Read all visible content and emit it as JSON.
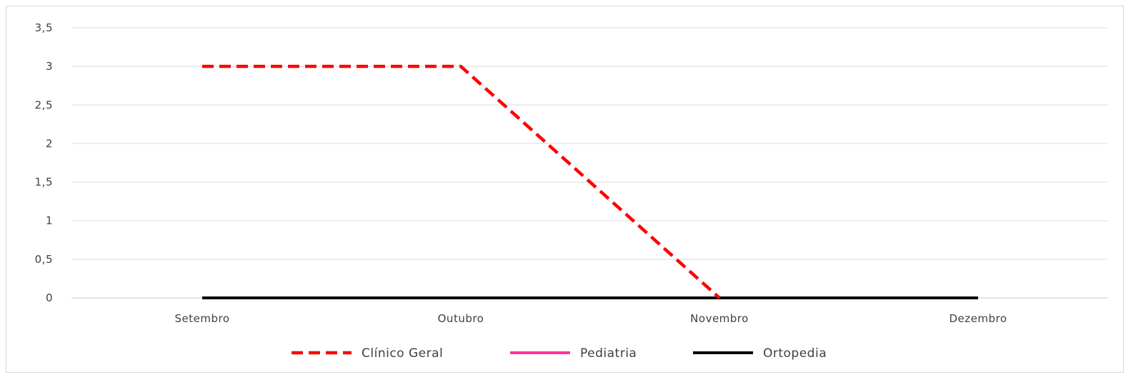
{
  "chart_data": {
    "type": "line",
    "title": "",
    "xlabel": "",
    "ylabel": "",
    "categories": [
      "Setembro",
      "Outubro",
      "Novembro",
      "Dezembro"
    ],
    "yticks": [
      "0",
      "0,5",
      "1",
      "1,5",
      "2",
      "2,5",
      "3",
      "3,5"
    ],
    "ylim": [
      0,
      3.5
    ],
    "grid": true,
    "legend_position": "bottom",
    "series": [
      {
        "name": "Clínico Geral",
        "values": [
          3,
          3,
          0,
          null
        ],
        "color": "#ff0000",
        "style": "dashed"
      },
      {
        "name": "Pediatria",
        "values": [
          0,
          0,
          0,
          0
        ],
        "color": "#ff3399",
        "style": "solid"
      },
      {
        "name": "Ortopedia",
        "values": [
          0,
          0,
          0,
          0
        ],
        "color": "#000000",
        "style": "solid"
      }
    ]
  }
}
